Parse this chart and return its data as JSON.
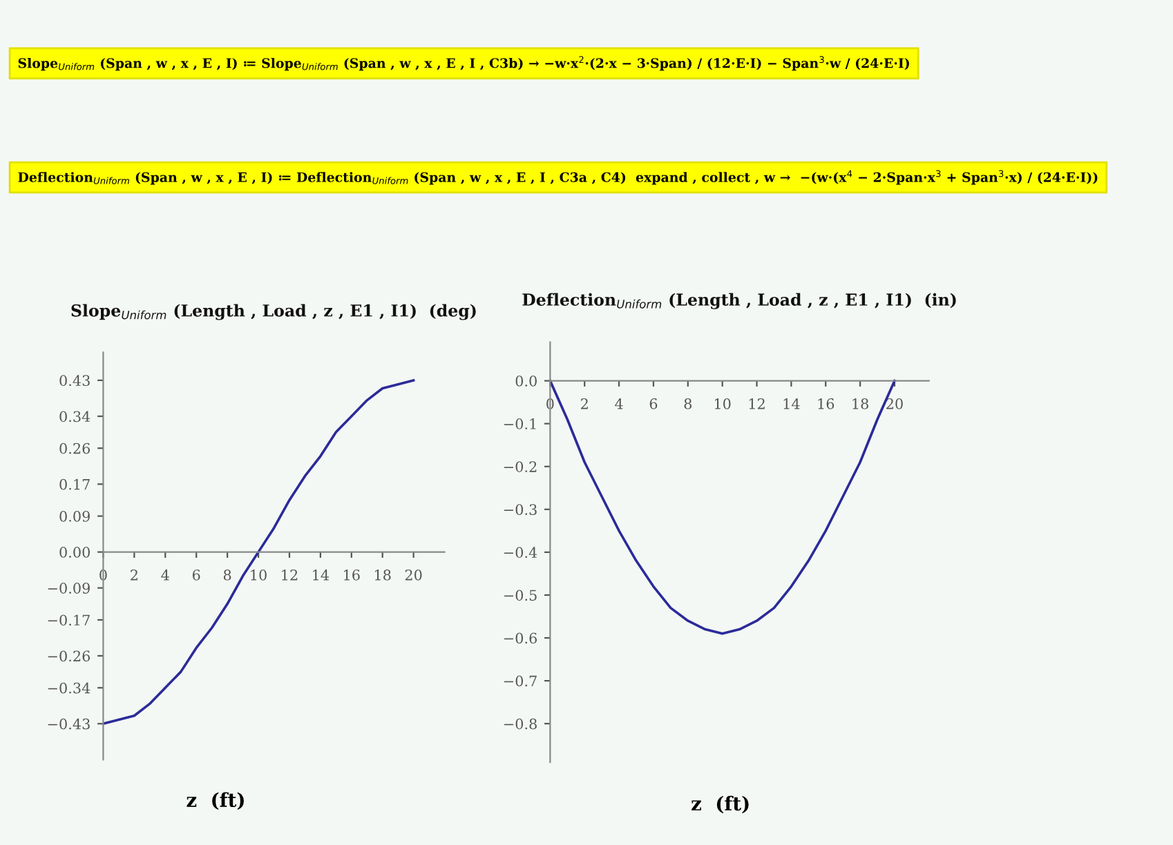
{
  "chart_data": [
    {
      "type": "line",
      "title": "Slope$_{Uniform}$ (Length , Load , z , E1 , I1)  (deg)",
      "xlabel": "z  (ft)",
      "annotations": [
        "Slope$_{Uniform}$ (Span , w , x , E , I) ≔ Slope$_{Uniform}$ (Span , w , x , E , I , C3b) → −w·x$^{2}$·(2·x − 3·Span) / (12·E·I) − Span$^{3}$·w / (24·E·I)"
      ],
      "x": [
        0,
        1,
        2,
        3,
        4,
        5,
        6,
        7,
        8,
        9,
        10,
        11,
        12,
        13,
        14,
        15,
        16,
        17,
        18,
        19,
        20
      ],
      "series": [
        {
          "color": "#2b2b9a",
          "values": [
            -0.43,
            -0.42,
            -0.41,
            -0.38,
            -0.34,
            -0.3,
            -0.24,
            -0.19,
            -0.13,
            -0.06,
            0.0,
            0.06,
            0.13,
            0.19,
            0.24,
            0.3,
            0.34,
            0.38,
            0.41,
            0.42,
            0.43
          ]
        }
      ],
      "xlim": [
        0,
        22
      ],
      "ylim": [
        -0.52,
        0.5
      ],
      "xticks": [
        0,
        2,
        4,
        6,
        8,
        10,
        12,
        14,
        16,
        18,
        20
      ],
      "yticks": [
        {
          "value": -0.43,
          "label": "−0.43"
        },
        {
          "value": -0.34,
          "label": "−0.34"
        },
        {
          "value": -0.26,
          "label": "−0.26"
        },
        {
          "value": -0.17,
          "label": "−0.17"
        },
        {
          "value": -0.09,
          "label": "−0.09"
        },
        {
          "value": 0,
          "label": "0.00"
        },
        {
          "value": 0.09,
          "label": "0.09"
        },
        {
          "value": 0.17,
          "label": "0.17"
        },
        {
          "value": 0.26,
          "label": "0.26"
        },
        {
          "value": 0.34,
          "label": "0.34"
        },
        {
          "value": 0.43,
          "label": "0.43"
        }
      ],
      "grid": false,
      "legend": false,
      "line_style": "solid",
      "marker": "none"
    },
    {
      "type": "line",
      "title": "Deflection$_{Uniform}$ (Length , Load , z , E1 , I1)  (in)",
      "xlabel": "z  (ft)",
      "annotations": [
        "Deflection$_{Uniform}$ (Span , w , x , E , I) ≔ Deflection$_{Uniform}$ (Span , w , x , E , I , C3a , C4)  expand , collect , w →  −(w·(x$^{4}$ − 2·Span·x$^{3}$ + Span$^{3}$·x) / (24·E·I))"
      ],
      "x": [
        0,
        1,
        2,
        3,
        4,
        5,
        6,
        7,
        8,
        9,
        10,
        11,
        12,
        13,
        14,
        15,
        16,
        17,
        18,
        19,
        20
      ],
      "series": [
        {
          "color": "#2b2b9a",
          "values": [
            0.0,
            -0.09,
            -0.19,
            -0.27,
            -0.35,
            -0.42,
            -0.48,
            -0.53,
            -0.56,
            -0.58,
            -0.59,
            -0.58,
            -0.56,
            -0.53,
            -0.48,
            -0.42,
            -0.35,
            -0.27,
            -0.19,
            -0.09,
            0.0
          ]
        }
      ],
      "xlim": [
        0,
        22
      ],
      "ylim": [
        -0.89,
        0.09
      ],
      "xticks": [
        0,
        2,
        4,
        6,
        8,
        10,
        12,
        14,
        16,
        18,
        20
      ],
      "yticks": [
        {
          "value": -0.8,
          "label": "−0.8"
        },
        {
          "value": -0.7,
          "label": "−0.7"
        },
        {
          "value": -0.6,
          "label": "−0.6"
        },
        {
          "value": -0.5,
          "label": "−0.5"
        },
        {
          "value": -0.4,
          "label": "−0.4"
        },
        {
          "value": -0.3,
          "label": "−0.3"
        },
        {
          "value": -0.2,
          "label": "−0.2"
        },
        {
          "value": -0.1,
          "label": "−0.1"
        },
        {
          "value": 0,
          "label": "0.0"
        }
      ],
      "grid": false,
      "legend": false,
      "line_style": "solid",
      "marker": "none"
    }
  ]
}
